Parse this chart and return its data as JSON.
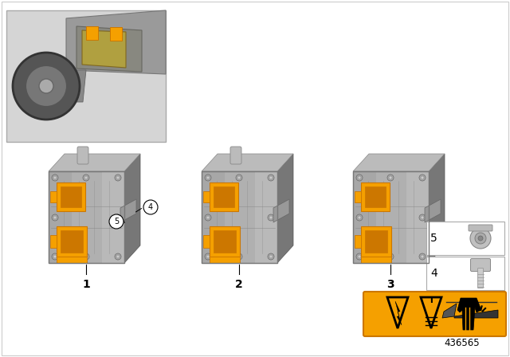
{
  "background_color": "#ffffff",
  "diagram_number": "436565",
  "orange": "#f5a000",
  "orange_dark": "#cc7700",
  "gray_main": "#aaaaaa",
  "gray_light": "#cccccc",
  "gray_dark": "#888888",
  "gray_darker": "#666666",
  "gray_shadow": "#999999",
  "white": "#ffffff",
  "black": "#000000",
  "warning_yellow": "#f5a000",
  "figsize": [
    6.4,
    4.48
  ],
  "dpi": 100
}
